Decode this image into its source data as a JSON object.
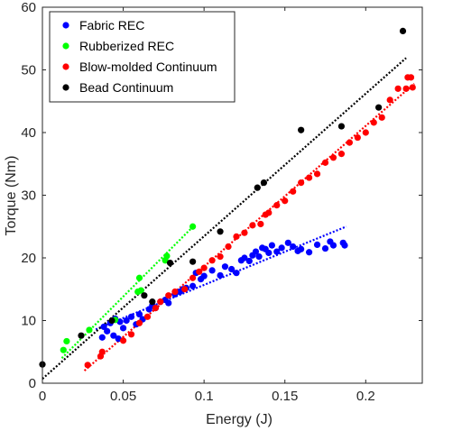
{
  "chart_data": {
    "type": "scatter",
    "xlabel": "Energy (J)",
    "ylabel": "Torque (Nm)",
    "xlim": [
      0,
      0.235
    ],
    "ylim": [
      0,
      60
    ],
    "xticks": [
      0,
      0.05,
      0.1,
      0.15,
      0.2
    ],
    "xtick_labels": [
      "0",
      "0.05",
      "0.1",
      "0.15",
      "0.2"
    ],
    "yticks": [
      0,
      10,
      20,
      30,
      40,
      50,
      60
    ],
    "ytick_labels": [
      "0",
      "10",
      "20",
      "30",
      "40",
      "50",
      "60"
    ],
    "grid": false,
    "legend_position": "top-left",
    "series": [
      {
        "name": "Fabric REC",
        "color": "#0000ff",
        "points": [
          [
            0.037,
            7.3
          ],
          [
            0.038,
            9.0
          ],
          [
            0.04,
            8.3
          ],
          [
            0.042,
            9.6
          ],
          [
            0.044,
            7.6
          ],
          [
            0.045,
            10.3
          ],
          [
            0.047,
            7.1
          ],
          [
            0.048,
            9.8
          ],
          [
            0.05,
            8.8
          ],
          [
            0.052,
            10.0
          ],
          [
            0.055,
            10.6
          ],
          [
            0.058,
            9.4
          ],
          [
            0.06,
            11.0
          ],
          [
            0.062,
            10.2
          ],
          [
            0.066,
            11.8
          ],
          [
            0.068,
            12.4
          ],
          [
            0.07,
            12.0
          ],
          [
            0.073,
            13.0
          ],
          [
            0.076,
            13.3
          ],
          [
            0.078,
            12.8
          ],
          [
            0.082,
            14.2
          ],
          [
            0.085,
            14.6
          ],
          [
            0.087,
            15.0
          ],
          [
            0.089,
            15.2
          ],
          [
            0.093,
            15.5
          ],
          [
            0.095,
            17.6
          ],
          [
            0.098,
            16.6
          ],
          [
            0.1,
            17.1
          ],
          [
            0.105,
            18.0
          ],
          [
            0.11,
            17.2
          ],
          [
            0.113,
            18.6
          ],
          [
            0.117,
            18.2
          ],
          [
            0.12,
            17.6
          ],
          [
            0.123,
            19.6
          ],
          [
            0.125,
            20.0
          ],
          [
            0.128,
            19.5
          ],
          [
            0.13,
            20.4
          ],
          [
            0.132,
            21.0
          ],
          [
            0.134,
            20.2
          ],
          [
            0.136,
            21.6
          ],
          [
            0.138,
            21.4
          ],
          [
            0.14,
            20.8
          ],
          [
            0.142,
            22.0
          ],
          [
            0.145,
            21.0
          ],
          [
            0.148,
            21.6
          ],
          [
            0.152,
            22.4
          ],
          [
            0.155,
            21.8
          ],
          [
            0.158,
            21.1
          ],
          [
            0.16,
            21.4
          ],
          [
            0.165,
            20.9
          ],
          [
            0.17,
            22.1
          ],
          [
            0.175,
            21.5
          ],
          [
            0.178,
            22.6
          ],
          [
            0.18,
            22.0
          ],
          [
            0.186,
            22.4
          ],
          [
            0.187,
            22.0
          ]
        ],
        "fit": [
          [
            0.033,
            8.6
          ],
          [
            0.188,
            25.0
          ]
        ]
      },
      {
        "name": "Rubberized REC",
        "color": "#00ff00",
        "points": [
          [
            0.013,
            5.3
          ],
          [
            0.015,
            6.7
          ],
          [
            0.029,
            8.5
          ],
          [
            0.045,
            10.1
          ],
          [
            0.059,
            14.6
          ],
          [
            0.06,
            16.8
          ],
          [
            0.061,
            14.8
          ],
          [
            0.076,
            19.6
          ],
          [
            0.077,
            20.3
          ],
          [
            0.093,
            25.0
          ]
        ],
        "fit": [
          [
            0.012,
            4.0
          ],
          [
            0.094,
            25.2
          ]
        ]
      },
      {
        "name": "Blow-molded Continuum",
        "color": "#ff0000",
        "points": [
          [
            0.028,
            2.9
          ],
          [
            0.036,
            4.3
          ],
          [
            0.037,
            5.0
          ],
          [
            0.05,
            6.8
          ],
          [
            0.055,
            7.8
          ],
          [
            0.06,
            9.6
          ],
          [
            0.065,
            10.6
          ],
          [
            0.07,
            12.0
          ],
          [
            0.073,
            13.0
          ],
          [
            0.078,
            14.0
          ],
          [
            0.082,
            14.6
          ],
          [
            0.088,
            15.0
          ],
          [
            0.093,
            16.8
          ],
          [
            0.097,
            17.8
          ],
          [
            0.1,
            18.4
          ],
          [
            0.105,
            19.6
          ],
          [
            0.11,
            20.2
          ],
          [
            0.115,
            21.8
          ],
          [
            0.12,
            23.4
          ],
          [
            0.125,
            24.0
          ],
          [
            0.13,
            25.2
          ],
          [
            0.135,
            25.4
          ],
          [
            0.138,
            26.9
          ],
          [
            0.14,
            27.2
          ],
          [
            0.145,
            28.4
          ],
          [
            0.15,
            29.1
          ],
          [
            0.155,
            30.6
          ],
          [
            0.16,
            32.0
          ],
          [
            0.165,
            32.8
          ],
          [
            0.17,
            33.4
          ],
          [
            0.175,
            35.2
          ],
          [
            0.18,
            36.0
          ],
          [
            0.185,
            36.6
          ],
          [
            0.19,
            38.4
          ],
          [
            0.195,
            39.2
          ],
          [
            0.2,
            40.0
          ],
          [
            0.205,
            41.6
          ],
          [
            0.21,
            42.4
          ],
          [
            0.215,
            45.2
          ],
          [
            0.22,
            47.0
          ],
          [
            0.225,
            47.0
          ],
          [
            0.226,
            48.8
          ],
          [
            0.228,
            48.8
          ],
          [
            0.229,
            47.2
          ]
        ],
        "fit": [
          [
            0.026,
            2.0
          ],
          [
            0.23,
            47.8
          ]
        ]
      },
      {
        "name": "Bead Continuum",
        "color": "#000000",
        "points": [
          [
            0.0,
            3.0
          ],
          [
            0.024,
            7.6
          ],
          [
            0.043,
            10.0
          ],
          [
            0.063,
            14.0
          ],
          [
            0.068,
            13.0
          ],
          [
            0.079,
            19.2
          ],
          [
            0.093,
            19.4
          ],
          [
            0.11,
            24.2
          ],
          [
            0.133,
            31.2
          ],
          [
            0.137,
            32.0
          ],
          [
            0.16,
            40.4
          ],
          [
            0.185,
            41.0
          ],
          [
            0.208,
            44.0
          ],
          [
            0.223,
            56.2
          ]
        ],
        "fit": [
          [
            0.0,
            0.7
          ],
          [
            0.225,
            51.9
          ]
        ]
      }
    ]
  }
}
